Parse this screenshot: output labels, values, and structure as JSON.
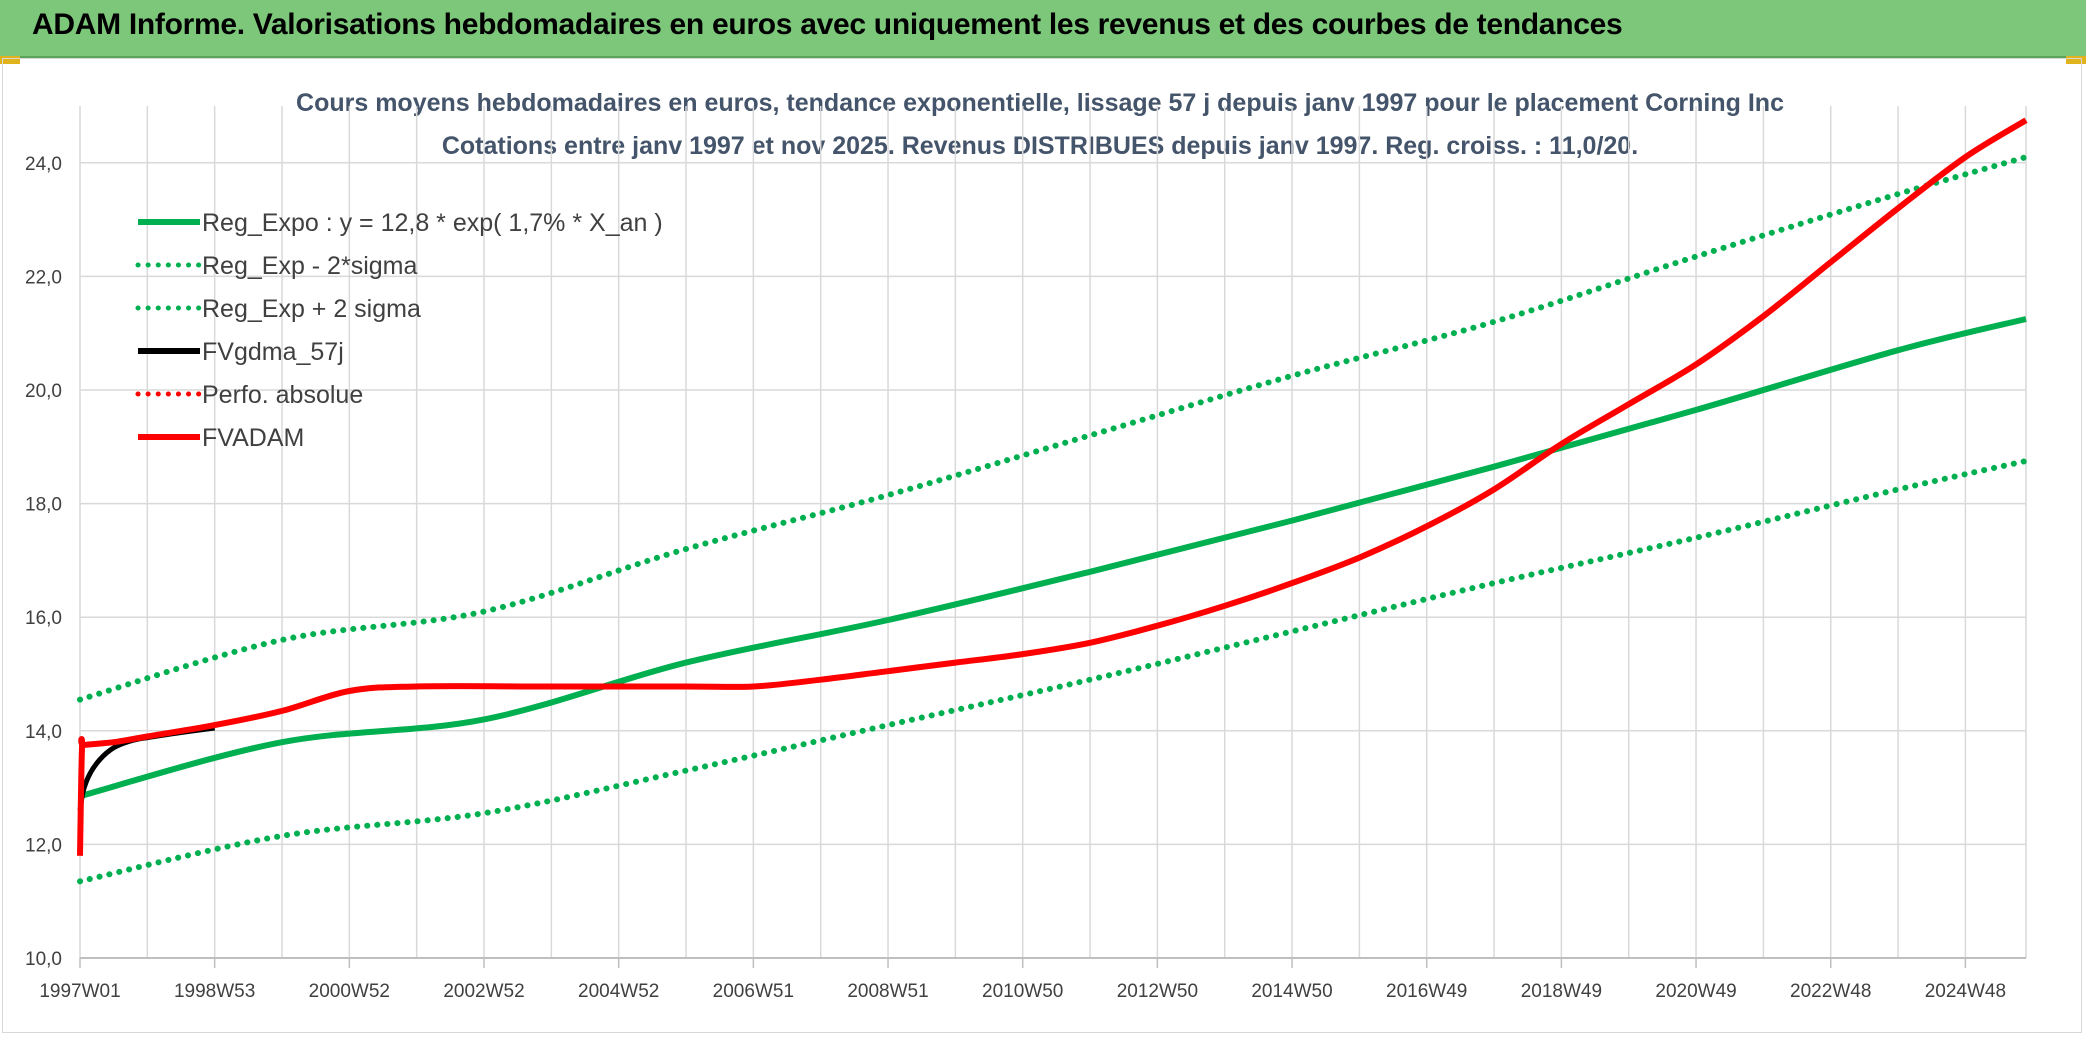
{
  "header": {
    "title": "ADAM Informe. Valorisations hebdomadaires en euros avec uniquement les revenus et des courbes de tendances"
  },
  "colors": {
    "green": "#00b050",
    "black": "#000000",
    "red": "#ff0000",
    "header_bg": "#7dc77b"
  },
  "chart_data": {
    "type": "line",
    "title": "Cours moyens hebdomadaires en euros, tendance exponentielle, lissage 57 j depuis janv 1997 pour le placement Corning Inc",
    "subtitle": "Cotations entre janv 1997 et nov 2025. Revenus DISTRIBUES depuis janv 1997. Reg. croiss. : 11,0/20.",
    "xlabel": "",
    "ylabel": "",
    "x_tick_labels": [
      "1997W01",
      "1998W53",
      "2000W52",
      "2002W52",
      "2004W52",
      "2006W51",
      "2008W51",
      "2010W50",
      "2012W50",
      "2014W50",
      "2016W49",
      "2018W49",
      "2020W49",
      "2022W48",
      "2024W48"
    ],
    "y_tick_labels": [
      "10,0",
      "12,0",
      "14,0",
      "16,0",
      "18,0",
      "20,0",
      "22,0",
      "24,0"
    ],
    "xlim": [
      1997.0,
      2025.9
    ],
    "ylim": [
      10,
      25
    ],
    "grid": true,
    "legend_position": "top-left",
    "series": [
      {
        "name": "Reg_Expo : y = 12,8 * exp( 1,7% *  X_an )",
        "color": "#00b050",
        "style": "solid",
        "x": [
          1997.0,
          2000.0,
          2003.0,
          2006.0,
          2009.0,
          2012.0,
          2015.0,
          2018.0,
          2021.0,
          2024.0,
          2025.9
        ],
        "y": [
          12.85,
          13.8,
          14.2,
          15.2,
          15.95,
          16.8,
          17.7,
          18.65,
          19.65,
          20.7,
          21.25
        ]
      },
      {
        "name": "Reg_Exp - 2*sigma",
        "color": "#00b050",
        "style": "dotted",
        "x": [
          1997.0,
          2000.0,
          2003.0,
          2006.0,
          2009.0,
          2012.0,
          2015.0,
          2018.0,
          2021.0,
          2024.0,
          2025.9
        ],
        "y": [
          11.35,
          12.15,
          12.55,
          13.3,
          14.1,
          14.9,
          15.75,
          16.6,
          17.4,
          18.25,
          18.75
        ]
      },
      {
        "name": "Reg_Exp + 2 sigma",
        "color": "#00b050",
        "style": "dotted",
        "x": [
          1997.0,
          2000.0,
          2003.0,
          2006.0,
          2009.0,
          2012.0,
          2015.0,
          2018.0,
          2021.0,
          2024.0,
          2025.9
        ],
        "y": [
          14.55,
          15.6,
          16.1,
          17.2,
          18.15,
          19.2,
          20.25,
          21.2,
          22.35,
          23.45,
          24.1
        ]
      },
      {
        "name": "FVgdma_57j",
        "color": "#000000",
        "style": "solid",
        "x": [
          1997.0,
          1997.05,
          1997.15,
          1997.3,
          1997.5,
          1997.75,
          1998.0,
          1998.5,
          1999.0
        ],
        "y": [
          12.6,
          12.95,
          13.25,
          13.5,
          13.7,
          13.82,
          13.88,
          13.97,
          14.05
        ]
      },
      {
        "name": "Perfo. absolue",
        "color": "#ff0000",
        "style": "dotted",
        "x": [],
        "y": []
      },
      {
        "name": "FVADAM",
        "color": "#ff0000",
        "style": "solid",
        "x": [
          1997.0,
          1997.03,
          1997.06,
          1997.5,
          1998.0,
          1999.0,
          2000.0,
          2001.0,
          2002.0,
          2004.0,
          2006.0,
          2007.0,
          2008.0,
          2009.0,
          2010.0,
          2011.0,
          2012.0,
          2013.0,
          2014.0,
          2015.0,
          2016.0,
          2017.0,
          2018.0,
          2019.0,
          2020.0,
          2021.0,
          2022.0,
          2023.0,
          2024.0,
          2025.0,
          2025.9
        ],
        "y": [
          11.8,
          13.7,
          13.75,
          13.8,
          13.9,
          14.1,
          14.35,
          14.7,
          14.78,
          14.78,
          14.78,
          14.78,
          14.9,
          15.05,
          15.2,
          15.35,
          15.55,
          15.85,
          16.2,
          16.6,
          17.05,
          17.6,
          18.25,
          19.05,
          19.75,
          20.45,
          21.3,
          22.25,
          23.2,
          24.1,
          24.75
        ]
      }
    ]
  }
}
